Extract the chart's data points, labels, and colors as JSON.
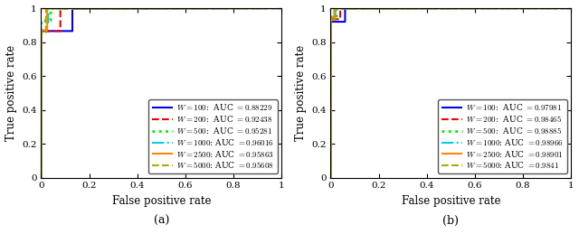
{
  "subplot_a": {
    "title": "(a)",
    "xlabel": "False positive rate",
    "ylabel": "True positive rate",
    "series": [
      {
        "label": "$W = 100$:  AUC $= 0.88229$",
        "color": "#0000ee",
        "linestyle": "solid",
        "linewidth": 1.5,
        "fpr": [
          0,
          0.0,
          0.13,
          0.13,
          1.0
        ],
        "tpr": [
          0,
          0.865,
          0.865,
          0.998,
          1.0
        ]
      },
      {
        "label": "$W = 200$:  AUC $= 0.92438$",
        "color": "#ee0000",
        "linestyle": "dashed",
        "linewidth": 1.5,
        "fpr": [
          0,
          0.0,
          0.08,
          0.08,
          1.0
        ],
        "tpr": [
          0,
          0.865,
          0.865,
          0.998,
          1.0
        ]
      },
      {
        "label": "$W = 500$:  AUC $= 0.95281$",
        "color": "#00ee00",
        "linestyle": "dotted",
        "linewidth": 2.0,
        "fpr": [
          0,
          0.0,
          0.04,
          0.04,
          1.0
        ],
        "tpr": [
          0,
          0.925,
          0.925,
          0.999,
          1.0
        ]
      },
      {
        "label": "$W = 1000$: AUC $= 0.96016$",
        "color": "#00ccee",
        "linestyle": "dashdot",
        "linewidth": 1.5,
        "fpr": [
          0,
          0.0,
          0.03,
          0.03,
          1.0
        ],
        "tpr": [
          0,
          0.915,
          0.915,
          0.999,
          1.0
        ]
      },
      {
        "label": "$W = 2500$: AUC $= 0.95863$",
        "color": "#ff8800",
        "linestyle": "solid",
        "linewidth": 1.5,
        "fpr": [
          0,
          0.0,
          0.025,
          0.025,
          1.0
        ],
        "tpr": [
          0,
          0.87,
          0.87,
          0.999,
          1.0
        ]
      },
      {
        "label": "$W = 5000$: AUC $= 0.95608$",
        "color": "#aaaa00",
        "linestyle": "dashed",
        "linewidth": 1.5,
        "fpr": [
          0,
          0.0,
          0.02,
          0.02,
          1.0
        ],
        "tpr": [
          0,
          0.855,
          0.855,
          0.999,
          1.0
        ]
      }
    ]
  },
  "subplot_b": {
    "title": "(b)",
    "xlabel": "False positive rate",
    "ylabel": "True positive rate",
    "series": [
      {
        "label": "$W = 100$:  AUC $= 0.97981$",
        "color": "#0000ee",
        "linestyle": "solid",
        "linewidth": 1.5,
        "fpr": [
          0,
          0.0,
          0.06,
          0.06,
          1.0
        ],
        "tpr": [
          0,
          0.92,
          0.92,
          0.999,
          1.0
        ]
      },
      {
        "label": "$W = 200$:  AUC $= 0.98465$",
        "color": "#ee0000",
        "linestyle": "dashed",
        "linewidth": 1.5,
        "fpr": [
          0,
          0.0,
          0.04,
          0.04,
          1.0
        ],
        "tpr": [
          0,
          0.935,
          0.935,
          0.999,
          1.0
        ]
      },
      {
        "label": "$W = 500$:  AUC $= 0.98885$",
        "color": "#00ee00",
        "linestyle": "dotted",
        "linewidth": 2.0,
        "fpr": [
          0,
          0.0,
          0.025,
          0.025,
          1.0
        ],
        "tpr": [
          0,
          0.945,
          0.945,
          0.999,
          1.0
        ]
      },
      {
        "label": "$W = 1000$: AUC $= 0.98966$",
        "color": "#00ccee",
        "linestyle": "dashdot",
        "linewidth": 1.5,
        "fpr": [
          0,
          0.0,
          0.02,
          0.02,
          1.0
        ],
        "tpr": [
          0,
          0.95,
          0.95,
          0.999,
          1.0
        ]
      },
      {
        "label": "$W = 2500$: AUC $= 0.98901$",
        "color": "#ff8800",
        "linestyle": "solid",
        "linewidth": 1.5,
        "fpr": [
          0,
          0.0,
          0.015,
          0.015,
          1.0
        ],
        "tpr": [
          0,
          0.945,
          0.945,
          0.999,
          1.0
        ]
      },
      {
        "label": "$W = 5000$: AUC $= 0.9841$",
        "color": "#aaaa00",
        "linestyle": "dashed",
        "linewidth": 1.5,
        "fpr": [
          0,
          0.0,
          0.018,
          0.018,
          1.0
        ],
        "tpr": [
          0,
          0.93,
          0.93,
          0.999,
          1.0
        ]
      }
    ]
  },
  "legend_fontsize": 6.5,
  "axis_fontsize": 8.5,
  "tick_fontsize": 7.5,
  "caption_fontsize": 9
}
